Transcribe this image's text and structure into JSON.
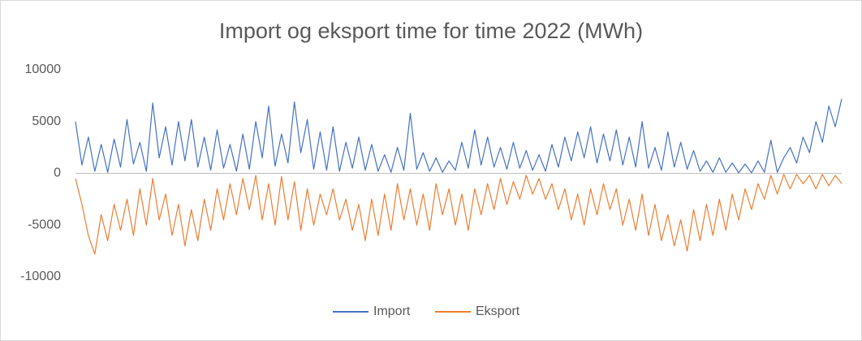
{
  "chart_data": {
    "type": "line",
    "title": "Import og eksport time for time 2022 (MWh)",
    "ylim": [
      -10000,
      10000
    ],
    "yticks": [
      -10000,
      -5000,
      0,
      5000,
      10000
    ],
    "grid": false,
    "legend": "bottom",
    "series": [
      {
        "name": "Import",
        "color": "#4472c4",
        "values": [
          5000,
          800,
          3500,
          200,
          2800,
          100,
          3300,
          600,
          5200,
          900,
          3000,
          200,
          6800,
          1500,
          4500,
          800,
          5000,
          1200,
          5200,
          600,
          3500,
          300,
          4200,
          500,
          2800,
          200,
          3800,
          400,
          5000,
          1500,
          6500,
          700,
          3800,
          1000,
          6900,
          2000,
          5200,
          400,
          4000,
          300,
          4500,
          200,
          3000,
          500,
          3500,
          300,
          2800,
          200,
          1800,
          100,
          2500,
          300,
          5800,
          400,
          2000,
          200,
          1500,
          100,
          1200,
          300,
          3000,
          500,
          4200,
          800,
          3500,
          600,
          2500,
          400,
          3000,
          500,
          2200,
          300,
          1800,
          200,
          2800,
          600,
          3500,
          1200,
          4000,
          1500,
          4500,
          1000,
          3800,
          1200,
          4200,
          800,
          3500,
          600,
          5000,
          500,
          2500,
          300,
          4000,
          600,
          3000,
          400,
          2200,
          200,
          1200,
          100,
          1500,
          100,
          1000,
          50,
          900,
          50,
          1200,
          100,
          3200,
          100,
          1500,
          2500,
          1000,
          3500,
          2000,
          5000,
          3000,
          6500,
          4500,
          7200
        ]
      },
      {
        "name": "Eksport",
        "color": "#ed7d31",
        "values": [
          -500,
          -3000,
          -6000,
          -7800,
          -4000,
          -6500,
          -3000,
          -5500,
          -2500,
          -6000,
          -1500,
          -5000,
          -500,
          -4500,
          -2000,
          -6000,
          -3000,
          -7000,
          -3500,
          -6500,
          -2500,
          -5500,
          -1500,
          -4500,
          -1000,
          -4000,
          -500,
          -3500,
          -200,
          -4500,
          -1000,
          -5000,
          -300,
          -4500,
          -800,
          -5500,
          -1500,
          -5000,
          -2000,
          -4000,
          -1500,
          -4500,
          -2500,
          -5500,
          -3000,
          -6500,
          -2500,
          -6000,
          -2000,
          -5500,
          -1000,
          -4500,
          -1500,
          -5000,
          -2000,
          -5500,
          -1000,
          -4000,
          -1500,
          -5000,
          -2000,
          -5500,
          -1500,
          -4000,
          -1000,
          -3500,
          -500,
          -3000,
          -800,
          -2500,
          -200,
          -2000,
          -500,
          -2500,
          -1000,
          -3500,
          -1500,
          -4500,
          -2000,
          -5000,
          -1500,
          -4000,
          -1000,
          -3500,
          -1500,
          -5000,
          -2500,
          -5500,
          -2000,
          -6000,
          -3000,
          -6500,
          -4000,
          -7000,
          -4500,
          -7500,
          -3500,
          -6500,
          -3000,
          -6000,
          -2500,
          -5500,
          -2000,
          -4500,
          -1500,
          -3500,
          -1000,
          -2500,
          -200,
          -2000,
          -100,
          -1500,
          -100,
          -1000,
          -200,
          -1500,
          -100,
          -1200,
          -200,
          -1000
        ]
      }
    ]
  }
}
